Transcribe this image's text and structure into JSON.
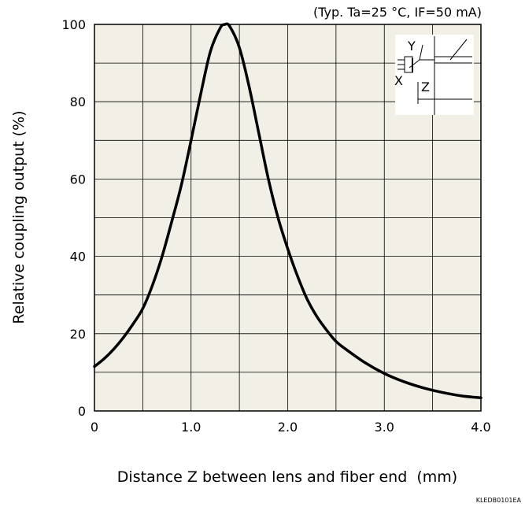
{
  "chart_data": {
    "type": "line",
    "conditions": "(Typ. Ta=25 °C, IF=50 mA)",
    "xlabel": "Distance Z between lens and fiber end  (mm)",
    "ylabel": "Relative coupling output (%)",
    "xlim": [
      0,
      4.0
    ],
    "ylim": [
      0,
      100
    ],
    "x_tick_labels": [
      "0",
      "1.0",
      "2.0",
      "3.0",
      "4.0"
    ],
    "y_tick_labels": [
      "0",
      "20",
      "40",
      "60",
      "80",
      "100"
    ],
    "x_ticks": [
      0,
      1.0,
      2.0,
      3.0,
      4.0
    ],
    "y_ticks": [
      0,
      20,
      40,
      60,
      80,
      100
    ],
    "grid": true,
    "background": "#f1efe6",
    "line_color": "#000000",
    "figure_code": "KLEDB0101EA",
    "inset_labels": {
      "y": "Y",
      "x": "X",
      "z": "Z"
    },
    "series": [
      {
        "x": [
          0,
          0.1,
          0.2,
          0.3,
          0.4,
          0.5,
          0.6,
          0.7,
          0.8,
          0.9,
          1.0,
          1.1,
          1.2,
          1.3,
          1.35,
          1.4,
          1.5,
          1.6,
          1.7,
          1.8,
          1.9,
          2.0,
          2.1,
          2.2,
          2.3,
          2.4,
          2.5,
          2.6,
          2.8,
          3.0,
          3.2,
          3.4,
          3.6,
          3.8,
          4.0
        ],
        "y": [
          11.5,
          13.5,
          16,
          19,
          22.5,
          26.5,
          32.5,
          40,
          49,
          58.5,
          70,
          82,
          93,
          99,
          100,
          99.5,
          94,
          84,
          72,
          60,
          50,
          42,
          35,
          29,
          24.5,
          21,
          18,
          16,
          12.5,
          9.7,
          7.6,
          6,
          4.8,
          3.9,
          3.4
        ]
      }
    ]
  }
}
